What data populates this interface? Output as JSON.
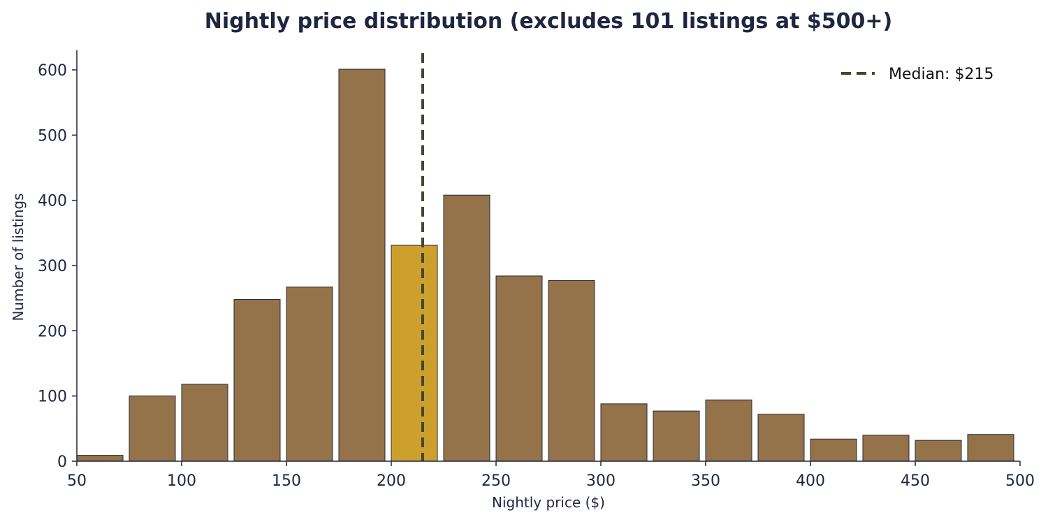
{
  "chart_data": {
    "type": "bar",
    "title": "Nightly price distribution (excludes 101 listings at $500+)",
    "xlabel": "Nightly price ($)",
    "ylabel": "Number of listings",
    "xlim": [
      50,
      500
    ],
    "ylim": [
      0,
      630
    ],
    "bin_width": 25,
    "bins": [
      {
        "start": 50,
        "end": 75,
        "count": 9
      },
      {
        "start": 75,
        "end": 100,
        "count": 100
      },
      {
        "start": 100,
        "end": 125,
        "count": 118
      },
      {
        "start": 125,
        "end": 150,
        "count": 248
      },
      {
        "start": 150,
        "end": 175,
        "count": 267
      },
      {
        "start": 175,
        "end": 200,
        "count": 601
      },
      {
        "start": 200,
        "end": 225,
        "count": 331,
        "highlight": true
      },
      {
        "start": 225,
        "end": 250,
        "count": 408
      },
      {
        "start": 250,
        "end": 275,
        "count": 284
      },
      {
        "start": 275,
        "end": 300,
        "count": 277
      },
      {
        "start": 300,
        "end": 325,
        "count": 88
      },
      {
        "start": 325,
        "end": 350,
        "count": 77
      },
      {
        "start": 350,
        "end": 375,
        "count": 94
      },
      {
        "start": 375,
        "end": 400,
        "count": 72
      },
      {
        "start": 400,
        "end": 425,
        "count": 34
      },
      {
        "start": 425,
        "end": 450,
        "count": 40
      },
      {
        "start": 450,
        "end": 475,
        "count": 32
      },
      {
        "start": 475,
        "end": 500,
        "count": 41
      }
    ],
    "x_ticks": [
      50,
      100,
      150,
      200,
      250,
      300,
      350,
      400,
      450,
      500
    ],
    "y_ticks": [
      0,
      100,
      200,
      300,
      400,
      500,
      600
    ],
    "median": {
      "value": 215,
      "label": "Median: $215"
    },
    "legend": {
      "position": "top-right"
    },
    "grid": false,
    "colors": {
      "bar": "#94734a",
      "highlight_bar": "#cda02d",
      "bar_edge": "#2a2a33",
      "median_line": "#454530",
      "axis": "#1e2640",
      "text": "#1e2640"
    }
  }
}
